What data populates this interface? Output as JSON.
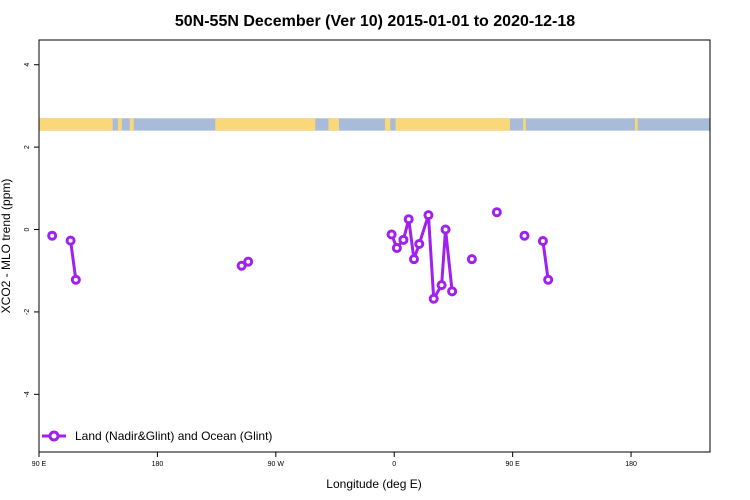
{
  "chart_data": {
    "type": "line",
    "title": "50N-55N December (Ver 10)   2015-01-01 to 2020-12-18",
    "xlabel": "Longitude (deg E)",
    "ylabel": "XCO2 - MLO trend (ppm)",
    "xlim": [
      90,
      600
    ],
    "ylim": [
      -5.4,
      4.6
    ],
    "x_ticks": [
      {
        "value": 90,
        "label": "90 E"
      },
      {
        "value": 180,
        "label": "180"
      },
      {
        "value": 270,
        "label": "90 W"
      },
      {
        "value": 360,
        "label": "0"
      },
      {
        "value": 450,
        "label": "90 E"
      },
      {
        "value": 540,
        "label": "180"
      }
    ],
    "y_ticks": [
      {
        "value": 4,
        "label": "4"
      },
      {
        "value": 2,
        "label": "2"
      },
      {
        "value": 0,
        "label": "0"
      },
      {
        "value": -2,
        "label": "-2"
      },
      {
        "value": -4,
        "label": "-4"
      }
    ],
    "series": [
      {
        "name": "Land (Nadir&Glint) and Ocean (Glint)",
        "color": "#a020f0",
        "segments": [
          [
            [
              100,
              -0.15
            ]
          ],
          [
            [
              114,
              -0.27
            ],
            [
              118,
              -1.22
            ]
          ],
          [
            [
              244,
              -0.88
            ],
            [
              249,
              -0.78
            ]
          ],
          [
            [
              358,
              -0.12
            ],
            [
              362,
              -0.45
            ],
            [
              367,
              -0.25
            ],
            [
              371,
              0.25
            ],
            [
              375,
              -0.72
            ],
            [
              379,
              -0.35
            ],
            [
              386,
              0.35
            ],
            [
              390,
              -1.68
            ],
            [
              396,
              -1.35
            ],
            [
              399,
              0.0
            ],
            [
              404,
              -1.5
            ]
          ],
          [
            [
              419,
              -0.72
            ]
          ],
          [
            [
              438,
              0.42
            ]
          ],
          [
            [
              459,
              -0.15
            ]
          ],
          [
            [
              473,
              -0.28
            ],
            [
              477,
              -1.22
            ]
          ]
        ]
      }
    ],
    "land_ocean_strip": {
      "y_range": [
        2.4,
        2.7
      ],
      "ocean_color": "#a8bcd9",
      "land_color": "#fad87a",
      "land_lon_ranges": [
        [
          90,
          146
        ],
        [
          150,
          153
        ],
        [
          159,
          162
        ],
        [
          224,
          300
        ],
        [
          310,
          318
        ],
        [
          353,
          357
        ],
        [
          361,
          448
        ],
        [
          458,
          460
        ],
        [
          543,
          545
        ]
      ]
    },
    "legend": {
      "placement": "bottom-left",
      "entries": [
        "Land (Nadir&Glint) and Ocean (Glint)"
      ]
    },
    "grid": false
  }
}
